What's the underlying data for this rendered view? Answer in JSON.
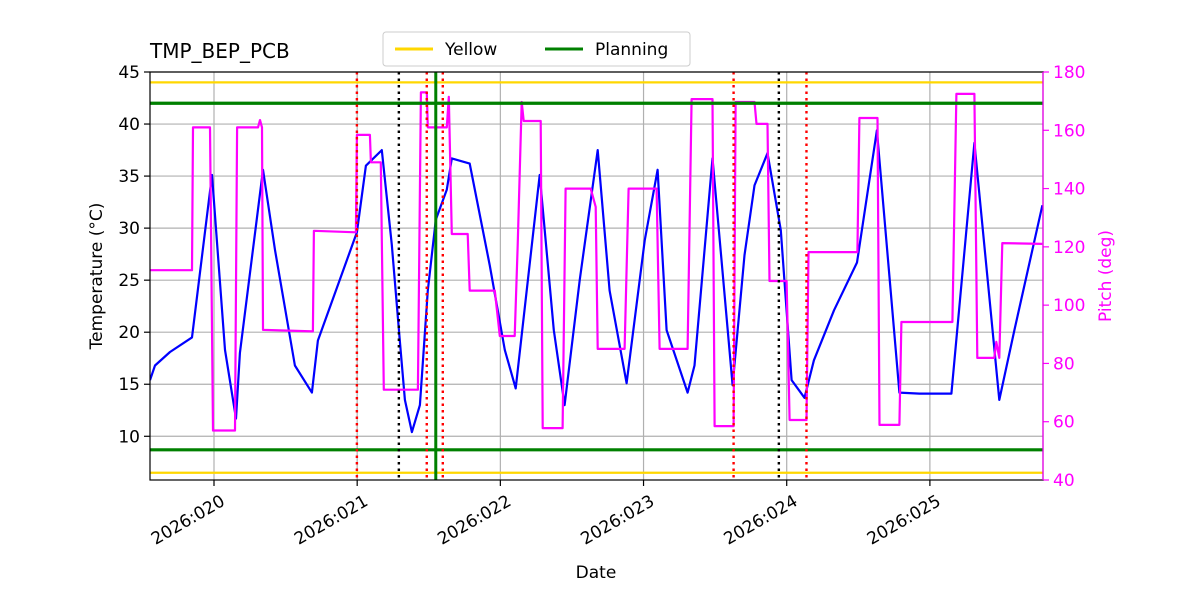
{
  "chart_data": {
    "type": "line",
    "title": "TMP_BEP_PCB",
    "xlabel": "Date",
    "ylabel": "Temperature (°C)",
    "y2label": "Pitch (deg)",
    "y2color": "#ff00ff",
    "xlim": [
      19.553,
      25.79
    ],
    "xticks": [
      {
        "value": 20,
        "label": "2026:020"
      },
      {
        "value": 21,
        "label": "2026:021"
      },
      {
        "value": 22,
        "label": "2026:022"
      },
      {
        "value": 23,
        "label": "2026:023"
      },
      {
        "value": 24,
        "label": "2026:024"
      },
      {
        "value": 25,
        "label": "2026:025"
      }
    ],
    "ylim": [
      5.8,
      45
    ],
    "yticks": [
      10,
      15,
      20,
      25,
      30,
      35,
      40,
      45
    ],
    "y2lim": [
      40,
      180
    ],
    "y2ticks": [
      40,
      60,
      80,
      100,
      120,
      140,
      160,
      180
    ],
    "grid": true,
    "legend": "upper center",
    "hlines": [
      {
        "name": "Yellow",
        "color": "#ffd700",
        "values": [
          44,
          6.5
        ]
      },
      {
        "name": "Planning",
        "color": "#008000",
        "values": [
          42,
          8.7
        ]
      }
    ],
    "vlines": [
      {
        "color": "#ff0000",
        "style": "dotted",
        "values": [
          20.998,
          21.486,
          21.598,
          23.629,
          24.138
        ]
      },
      {
        "color": "#000000",
        "style": "dotted",
        "values": [
          21.291,
          23.945
        ]
      },
      {
        "color": "#008000",
        "style": "solid",
        "values": [
          21.549
        ]
      }
    ],
    "series": [
      {
        "color": "#0000ff",
        "x": [
          19.553,
          19.588,
          19.693,
          19.846,
          19.986,
          20.077,
          20.154,
          20.181,
          20.342,
          20.426,
          20.565,
          20.684,
          20.726,
          20.998,
          21.061,
          21.172,
          21.242,
          21.298,
          21.333,
          21.382,
          21.438,
          21.493,
          21.549,
          21.626,
          21.661,
          21.786,
          21.926,
          22.031,
          22.107,
          22.275,
          22.373,
          22.449,
          22.554,
          22.68,
          22.763,
          22.882,
          23.008,
          23.098,
          23.161,
          23.308,
          23.356,
          23.482,
          23.622,
          23.705,
          23.775,
          23.866,
          23.959,
          24.034,
          24.124,
          24.19,
          24.33,
          24.491,
          24.63,
          24.787,
          24.927,
          25.15,
          25.311,
          25.485,
          25.59,
          25.786
        ],
        "values": [
          15.4,
          16.8,
          18.1,
          19.5,
          35.1,
          18.3,
          11.7,
          18,
          35.6,
          27.9,
          16.8,
          14.2,
          19.2,
          29.6,
          36.0,
          37.5,
          28.4,
          19.2,
          13.5,
          10.4,
          13.0,
          24.0,
          30.8,
          33.7,
          36.7,
          36.2,
          26.4,
          18.3,
          14.6,
          35.1,
          20.2,
          13.0,
          25.0,
          37.5,
          24.0,
          15.1,
          28.8,
          35.6,
          20.2,
          14.2,
          16.8,
          36.7,
          14.9,
          27.4,
          34.1,
          37.2,
          29.8,
          15.4,
          13.7,
          17.3,
          22.1,
          26.7,
          39.4,
          14.2,
          14.1,
          14.1,
          38.2,
          13.5,
          20.2,
          32.2
        ]
      },
      {
        "color": "#ff00ff",
        "axis": "y2",
        "x": [
          19.553,
          19.846,
          19.853,
          19.972,
          19.993,
          20.147,
          20.161,
          20.307,
          20.321,
          20.335,
          20.342,
          20.691,
          20.698,
          20.991,
          20.998,
          21.089,
          21.096,
          21.165,
          21.186,
          21.424,
          21.445,
          21.486,
          21.493,
          21.626,
          21.64,
          21.661,
          21.772,
          21.786,
          21.961,
          21.996,
          22.1,
          22.121,
          22.149,
          22.163,
          22.282,
          22.296,
          22.435,
          22.456,
          22.631,
          22.666,
          22.68,
          22.868,
          22.896,
          23.091,
          23.112,
          23.308,
          23.336,
          23.482,
          23.496,
          23.629,
          23.643,
          23.775,
          23.789,
          23.866,
          23.88,
          23.999,
          24.02,
          24.138,
          24.152,
          24.494,
          24.508,
          24.634,
          24.648,
          24.787,
          24.801,
          25.157,
          25.185,
          25.311,
          25.331,
          25.45,
          25.464,
          25.485,
          25.506,
          25.785
        ],
        "values": [
          112,
          112,
          161,
          161,
          57,
          57,
          161,
          161,
          163.5,
          161,
          91.5,
          91,
          125.5,
          125,
          158.4,
          158.4,
          149,
          149,
          71,
          71,
          173,
          173,
          161,
          161,
          171.5,
          124.4,
          124.4,
          105,
          105,
          89.4,
          89.4,
          120.6,
          169.7,
          163.2,
          163.2,
          57.8,
          57.8,
          140,
          140,
          133.7,
          85,
          85,
          140,
          140,
          85,
          85,
          170.7,
          170.7,
          58.5,
          58.5,
          169.7,
          169.7,
          162.2,
          162.2,
          108.3,
          108.3,
          60.6,
          60.6,
          118.2,
          118.2,
          164.2,
          164.2,
          58.9,
          58.9,
          94.2,
          94.2,
          172.5,
          172.5,
          81.9,
          81.9,
          87.4,
          81.9,
          121.3,
          121
        ]
      }
    ]
  }
}
